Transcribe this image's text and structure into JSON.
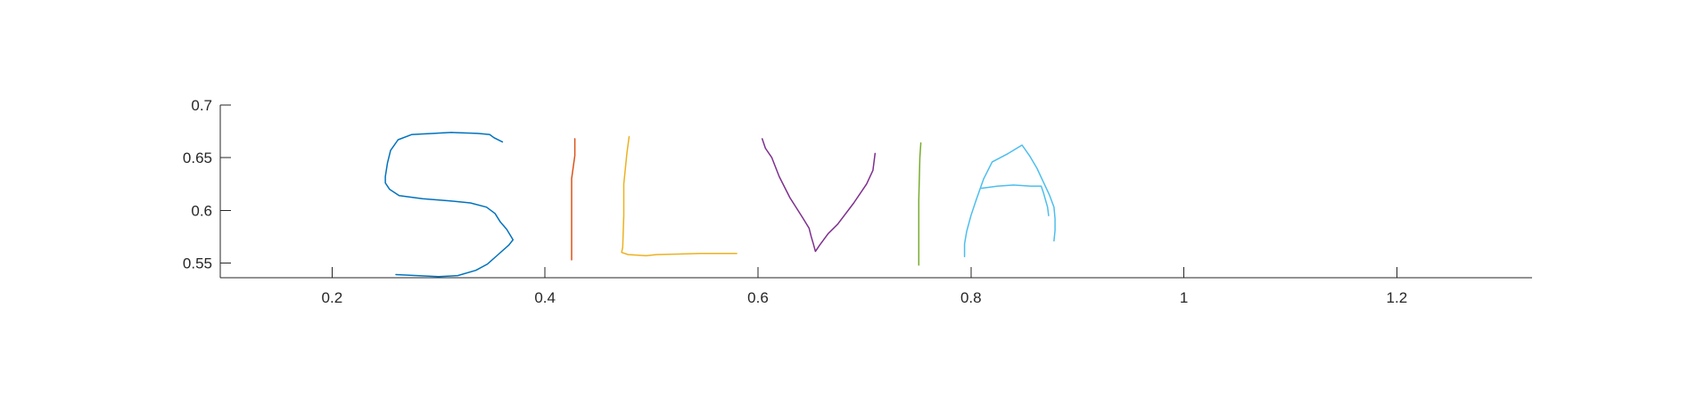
{
  "chart_data": {
    "type": "line",
    "title": "",
    "xlabel": "",
    "ylabel": "",
    "xlim": [
      0.095,
      1.327
    ],
    "ylim": [
      0.536,
      0.7
    ],
    "grid": false,
    "x_ticks": [
      0.2,
      0.4,
      0.6,
      0.8,
      1,
      1.2
    ],
    "x_tick_labels": [
      "0.2",
      "0.4",
      "0.6",
      "0.8",
      "1",
      "1.2"
    ],
    "y_ticks": [
      0.55,
      0.6,
      0.65,
      0.7
    ],
    "y_tick_labels": [
      "0.55",
      "0.6",
      "0.65",
      "0.7"
    ],
    "series": [
      {
        "color": "#0072BD",
        "points": [
          [
            0.36,
            0.665
          ],
          [
            0.352,
            0.669
          ],
          [
            0.348,
            0.672
          ],
          [
            0.337,
            0.673
          ],
          [
            0.312,
            0.674
          ],
          [
            0.295,
            0.673
          ],
          [
            0.275,
            0.672
          ],
          [
            0.262,
            0.667
          ],
          [
            0.255,
            0.657
          ],
          [
            0.252,
            0.645
          ],
          [
            0.25,
            0.632
          ],
          [
            0.25,
            0.626
          ],
          [
            0.254,
            0.62
          ],
          [
            0.263,
            0.614
          ],
          [
            0.285,
            0.611
          ],
          [
            0.31,
            0.609
          ],
          [
            0.33,
            0.607
          ],
          [
            0.345,
            0.603
          ],
          [
            0.353,
            0.597
          ],
          [
            0.358,
            0.589
          ],
          [
            0.364,
            0.582
          ],
          [
            0.37,
            0.572
          ],
          [
            0.366,
            0.567
          ],
          [
            0.356,
            0.558
          ],
          [
            0.346,
            0.549
          ],
          [
            0.335,
            0.543
          ],
          [
            0.318,
            0.538
          ],
          [
            0.3,
            0.537
          ],
          [
            0.28,
            0.538
          ],
          [
            0.26,
            0.539
          ]
        ]
      },
      {
        "color": "#D95319",
        "points": [
          [
            0.428,
            0.668
          ],
          [
            0.428,
            0.652
          ],
          [
            0.425,
            0.63
          ],
          [
            0.425,
            0.59
          ],
          [
            0.425,
            0.553
          ]
        ]
      },
      {
        "color": "#EDB120",
        "points": [
          [
            0.479,
            0.67
          ],
          [
            0.477,
            0.655
          ],
          [
            0.474,
            0.625
          ],
          [
            0.474,
            0.595
          ],
          [
            0.473,
            0.565
          ],
          [
            0.472,
            0.56
          ],
          [
            0.478,
            0.558
          ],
          [
            0.495,
            0.557
          ],
          [
            0.505,
            0.558
          ],
          [
            0.545,
            0.559
          ],
          [
            0.58,
            0.559
          ]
        ]
      },
      {
        "color": "#7E2F8E",
        "points": [
          [
            0.604,
            0.668
          ],
          [
            0.607,
            0.659
          ],
          [
            0.613,
            0.65
          ],
          [
            0.62,
            0.632
          ],
          [
            0.63,
            0.612
          ],
          [
            0.642,
            0.593
          ],
          [
            0.648,
            0.583
          ],
          [
            0.65,
            0.575
          ],
          [
            0.652,
            0.568
          ],
          [
            0.654,
            0.561
          ],
          [
            0.658,
            0.567
          ],
          [
            0.666,
            0.578
          ],
          [
            0.675,
            0.587
          ],
          [
            0.69,
            0.607
          ],
          [
            0.702,
            0.625
          ],
          [
            0.708,
            0.638
          ],
          [
            0.71,
            0.654
          ]
        ]
      },
      {
        "color": "#77AC30",
        "points": [
          [
            0.753,
            0.664
          ],
          [
            0.752,
            0.65
          ],
          [
            0.751,
            0.61
          ],
          [
            0.751,
            0.575
          ],
          [
            0.751,
            0.548
          ]
        ]
      },
      {
        "color": "#4DBEEE",
        "points": [
          [
            0.794,
            0.556
          ],
          [
            0.794,
            0.568
          ],
          [
            0.796,
            0.58
          ],
          [
            0.8,
            0.595
          ],
          [
            0.805,
            0.61
          ],
          [
            0.812,
            0.63
          ],
          [
            0.82,
            0.646
          ],
          [
            0.835,
            0.654
          ],
          [
            0.848,
            0.662
          ],
          [
            0.855,
            0.652
          ],
          [
            0.862,
            0.64
          ],
          [
            0.868,
            0.627
          ],
          [
            0.874,
            0.614
          ],
          [
            0.878,
            0.603
          ],
          [
            0.879,
            0.592
          ],
          [
            0.879,
            0.581
          ],
          [
            0.878,
            0.571
          ]
        ]
      },
      {
        "color": "#4DBEEE",
        "points": [
          [
            0.81,
            0.621
          ],
          [
            0.825,
            0.623
          ],
          [
            0.84,
            0.624
          ],
          [
            0.856,
            0.623
          ],
          [
            0.866,
            0.623
          ],
          [
            0.868,
            0.617
          ],
          [
            0.872,
            0.603
          ],
          [
            0.873,
            0.595
          ]
        ]
      }
    ]
  }
}
